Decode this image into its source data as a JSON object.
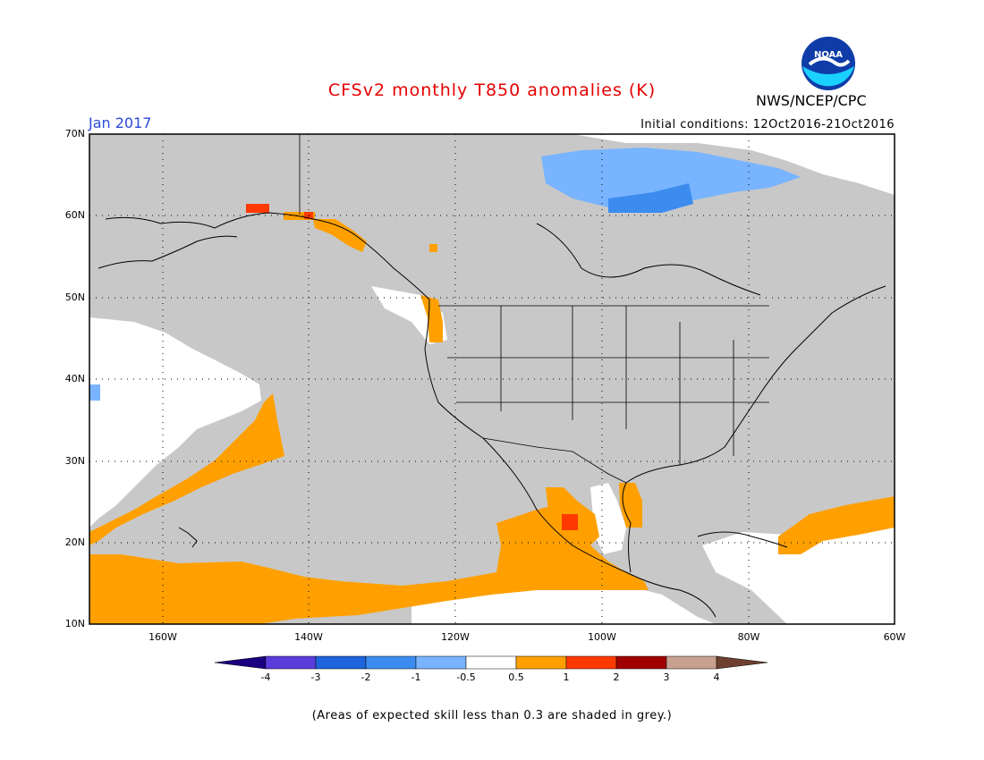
{
  "header": {
    "title": "CFSv2 monthly T850 anomalies (K)",
    "agency": "NWS/NCEP/CPC",
    "logo_text": "NOAA",
    "month": "Jan 2017",
    "initial_conditions": "Initial conditions: 12Oct2016-21Oct2016"
  },
  "map": {
    "lon_range": [
      -170,
      -60
    ],
    "lat_range": [
      10,
      70
    ],
    "lat_labels": [
      "70N",
      "60N",
      "50N",
      "40N",
      "30N",
      "20N",
      "10N"
    ],
    "lon_labels": [
      "160W",
      "140W",
      "120W",
      "100W",
      "80W",
      "60W"
    ],
    "colors": {
      "skill_grey": "#c8c8c8",
      "neutral": "#ffffff",
      "warm_1": "#ffa000",
      "warm_2": "#ff3a00",
      "cool_1": "#78b4ff",
      "cool_2": "#3c8cf0"
    }
  },
  "colorbar": {
    "labels": [
      "-4",
      "-3",
      "-2",
      "-1",
      "-0.5",
      "0.5",
      "1",
      "2",
      "3",
      "4"
    ],
    "colors": [
      "#1a0080",
      "#5a3cdc",
      "#1e64dc",
      "#3c8cf0",
      "#78b4ff",
      "#ffffff",
      "#ffa000",
      "#ff3a00",
      "#a00000",
      "#c8a090",
      "#6e4030"
    ]
  },
  "footer": {
    "note": "(Areas of expected skill less than 0.3 are shaded in grey.)"
  }
}
